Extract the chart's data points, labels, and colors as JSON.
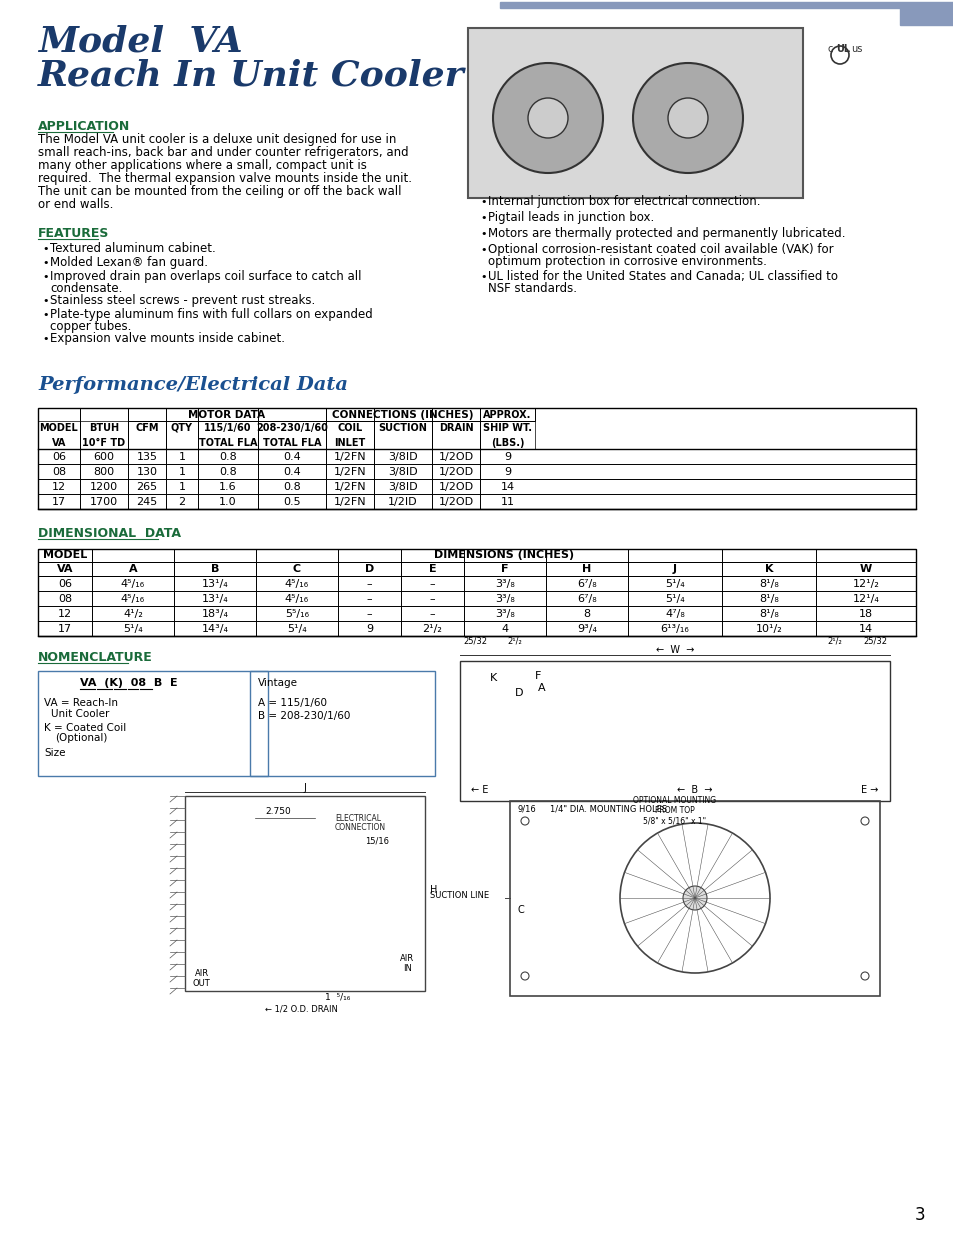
{
  "page_bg": "#ffffff",
  "title_line1": "Model  VA",
  "title_line2": "Reach In Unit Cooler",
  "title_color": "#1a3a6b",
  "section_color": "#1a6b3a",
  "text_color": "#000000",
  "border_color": "#4a7aaa",
  "app_heading": "APPLICATION",
  "app_text": "The Model VA unit cooler is a deluxe unit designed for use in\nsmall reach-ins, back bar and under counter refrigerators, and\nmany other applications where a small, compact unit is\nrequired.  The thermal expansion valve mounts inside the unit.\nThe unit can be mounted from the ceiling or off the back wall\nor end walls.",
  "feat_heading": "FEATURES",
  "feat_bullets": [
    "Textured aluminum cabinet.",
    "Molded Lexan® fan guard.",
    "Improved drain pan overlaps coil surface to catch all\n   condensate.",
    "Stainless steel screws - prevent rust streaks.",
    "Plate-type aluminum fins with full collars on expanded\n   copper tubes.",
    "Expansion valve mounts inside cabinet."
  ],
  "right_bullets": [
    "Internal junction box for electrical connection.",
    "Pigtail leads in junction box.",
    "Motors are thermally protected and permanently lubricated.",
    "Optional corrosion-resistant coated coil available (VAK) for\n  optimum protection in corrosive environments.",
    "UL listed for the United States and Canada; UL classified to\n  NSF standards."
  ],
  "perf_heading": "Performance/Electrical Data",
  "perf_data": [
    [
      "06",
      "600",
      "135",
      "1",
      "0.8",
      "0.4",
      "1/2FN",
      "3/8ID",
      "1/2OD",
      "9"
    ],
    [
      "08",
      "800",
      "130",
      "1",
      "0.8",
      "0.4",
      "1/2FN",
      "3/8ID",
      "1/2OD",
      "9"
    ],
    [
      "12",
      "1200",
      "265",
      "1",
      "1.6",
      "0.8",
      "1/2FN",
      "3/8ID",
      "1/2OD",
      "14"
    ],
    [
      "17",
      "1700",
      "245",
      "2",
      "1.0",
      "0.5",
      "1/2FN",
      "1/2ID",
      "1/2OD",
      "11"
    ]
  ],
  "dim_heading": "DIMENSIONAL  DATA",
  "dim_data": [
    [
      "06",
      "4⁵/₁₆",
      "13¹/₄",
      "4⁵/₁₆",
      "–",
      "–",
      "3³/₈",
      "6⁷/₈",
      "5¹/₄",
      "8¹/₈",
      "12¹/₂"
    ],
    [
      "08",
      "4⁵/₁₆",
      "13¹/₄",
      "4⁵/₁₆",
      "–",
      "–",
      "3³/₈",
      "6⁷/₈",
      "5¹/₄",
      "8¹/₈",
      "12¹/₄"
    ],
    [
      "12",
      "4¹/₂",
      "18³/₄",
      "5⁵/₁₆",
      "–",
      "–",
      "3³/₈",
      "8",
      "4⁷/₈",
      "8¹/₈",
      "18"
    ],
    [
      "17",
      "5¹/₄",
      "14³/₄",
      "5¹/₄",
      "9",
      "2¹/₂",
      "4",
      "9³/₄",
      "6¹³/₁₆",
      "10¹/₂",
      "14"
    ]
  ],
  "nom_heading": "NOMENCLATURE",
  "page_number": "3"
}
